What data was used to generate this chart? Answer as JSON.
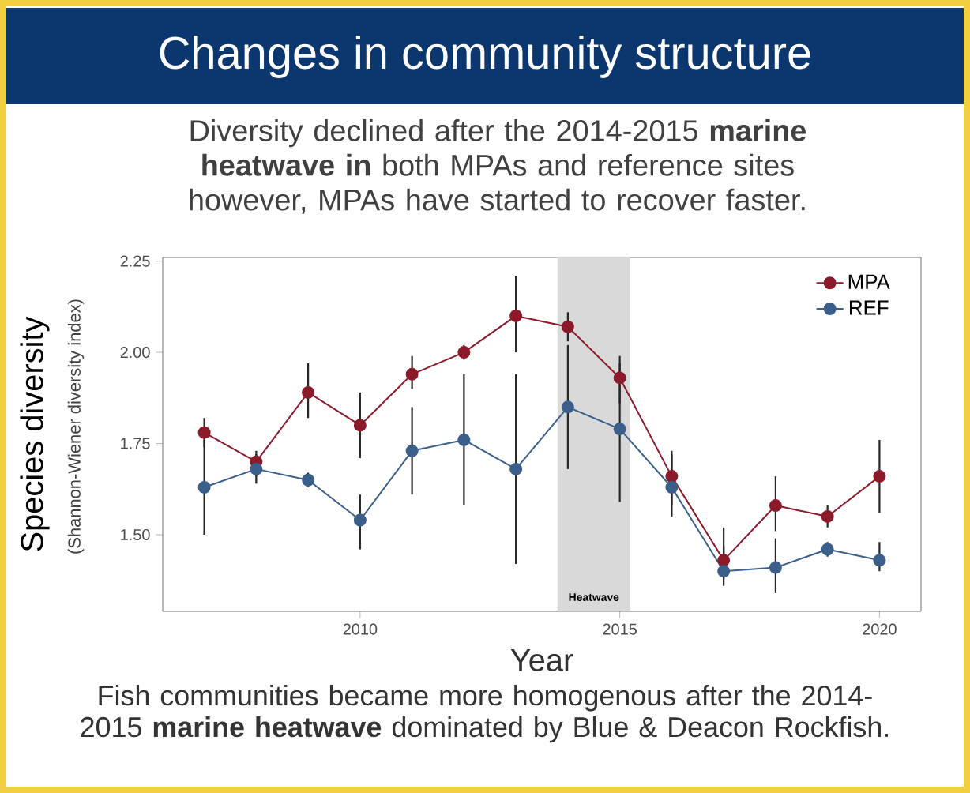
{
  "chart_data": {
    "type": "line",
    "title": "Changes in community structure",
    "subtitle": "Diversity declined after the 2014-2015 **marine heatwave in** both MPAs and reference sites however, MPAs have started to recover faster.",
    "xlabel": "Year",
    "ylabel": "Species diversity",
    "annotations": [
      "(Shannon-Wiener diversity index)",
      "Fish communities became more homogenous after the 2014-2015 **marine heatwave** dominated by Blue & Deacon Rockfish."
    ],
    "x": [
      2007,
      2008,
      2009,
      2010,
      2011,
      2012,
      2013,
      2014,
      2015,
      2016,
      2017,
      2018,
      2019,
      2020
    ],
    "series": [
      {
        "name": "MPA",
        "color": "#8b1a2b",
        "values": [
          1.78,
          1.7,
          1.89,
          1.8,
          1.94,
          2.0,
          2.1,
          2.07,
          1.93,
          1.66,
          1.43,
          1.58,
          1.55,
          1.66
        ],
        "errors": [
          [
            1.74,
            1.82
          ],
          [
            1.66,
            1.73
          ],
          [
            1.82,
            1.97
          ],
          [
            1.71,
            1.89
          ],
          [
            1.9,
            1.99
          ],
          [
            1.98,
            2.02
          ],
          [
            2.0,
            2.21
          ],
          [
            2.03,
            2.11
          ],
          [
            1.86,
            1.99
          ],
          [
            1.58,
            1.73
          ],
          [
            1.38,
            1.52
          ],
          [
            1.51,
            1.66
          ],
          [
            1.52,
            1.58
          ],
          [
            1.56,
            1.76
          ]
        ]
      },
      {
        "name": "REF",
        "color": "#3b5f8a",
        "values": [
          1.63,
          1.68,
          1.65,
          1.54,
          1.73,
          1.76,
          1.68,
          1.85,
          1.79,
          1.63,
          1.4,
          1.41,
          1.46,
          1.43
        ],
        "errors": [
          [
            1.5,
            1.76
          ],
          [
            1.64,
            1.72
          ],
          [
            1.63,
            1.67
          ],
          [
            1.46,
            1.61
          ],
          [
            1.61,
            1.85
          ],
          [
            1.58,
            1.94
          ],
          [
            1.42,
            1.94
          ],
          [
            1.68,
            2.02
          ],
          [
            1.59,
            1.97
          ],
          [
            1.55,
            1.72
          ],
          [
            1.36,
            1.47
          ],
          [
            1.34,
            1.49
          ],
          [
            1.44,
            1.48
          ],
          [
            1.4,
            1.48
          ]
        ]
      }
    ],
    "xlim": [
      2006.2,
      2020.8
    ],
    "ylim": [
      1.29,
      2.26
    ],
    "xticks": [
      2010,
      2015,
      2020
    ],
    "yticks": [
      {
        "value": 1.5,
        "label": "1.50"
      },
      {
        "value": 1.75,
        "label": "1.75"
      },
      {
        "value": 2.0,
        "label": "2.00"
      },
      {
        "value": 2.25,
        "label": "2.25"
      }
    ],
    "bands": [
      {
        "axis": "x",
        "from": 2013.8,
        "to": 2015.2,
        "label": "Heatwave",
        "color": "#d9d9d9"
      }
    ],
    "legend": "top right",
    "marker": "circle",
    "line_style": "solid"
  }
}
